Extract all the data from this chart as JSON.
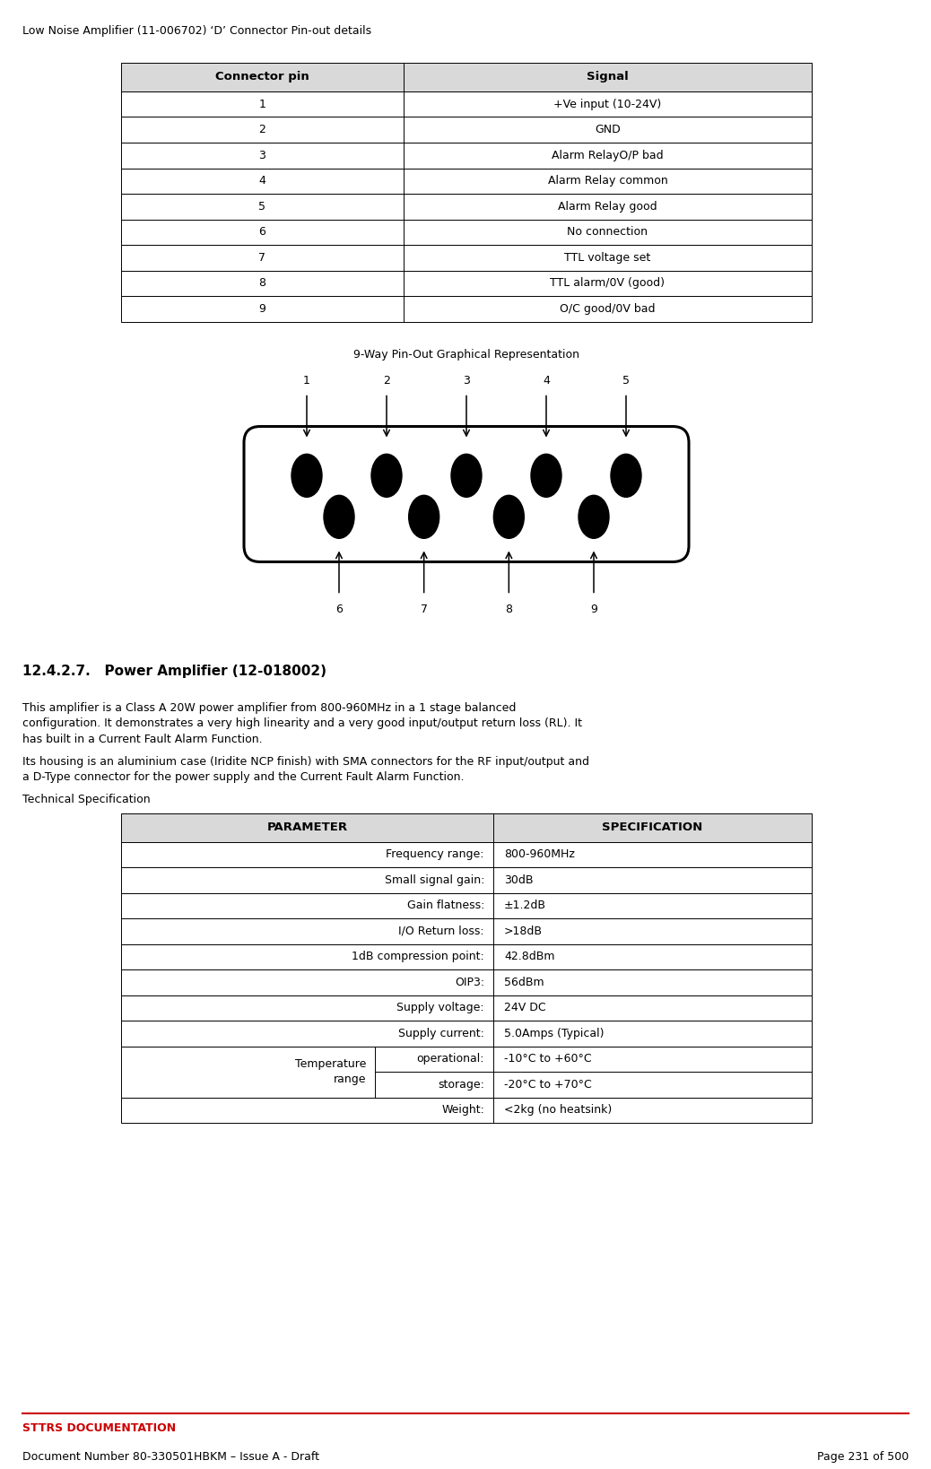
{
  "page_title": "Low Noise Amplifier (11-006702) ‘D’ Connector Pin-out details",
  "table1_headers": [
    "Connector pin",
    "Signal"
  ],
  "table1_rows": [
    [
      "1",
      "+Ve input (10-24V)"
    ],
    [
      "2",
      "GND"
    ],
    [
      "3",
      "Alarm RelayO/P bad"
    ],
    [
      "4",
      "Alarm Relay common"
    ],
    [
      "5",
      "Alarm Relay good"
    ],
    [
      "6",
      "No connection"
    ],
    [
      "7",
      "TTL voltage set"
    ],
    [
      "8",
      "TTL alarm/0V (good)"
    ],
    [
      "9",
      "O/C good/0V bad"
    ]
  ],
  "diagram_title": "9-Way Pin-Out Graphical Representation",
  "top_pins": [
    "1",
    "2",
    "3",
    "4",
    "5"
  ],
  "bottom_pins": [
    "6",
    "7",
    "8",
    "9"
  ],
  "section_heading": "12.4.2.7.   Power Amplifier (12-018002)",
  "body_text1": "This amplifier is a Class A 20W power amplifier from 800-960MHz in a 1 stage balanced\nconfiguration. It demonstrates a very high linearity and a very good input/output return loss (RL). It\nhas built in a Current Fault Alarm Function.",
  "body_text2": "Its housing is an aluminium case (Iridite NCP finish) with SMA connectors for the RF input/output and\na D-Type connector for the power supply and the Current Fault Alarm Function.",
  "tech_spec_label": "Technical Specification",
  "table2_headers": [
    "PARAMETER",
    "SPECIFICATION"
  ],
  "regular_rows": [
    [
      "Frequency range:",
      "800-960MHz"
    ],
    [
      "Small signal gain:",
      "30dB"
    ],
    [
      "Gain flatness:",
      "±1.2dB"
    ],
    [
      "I/O Return loss:",
      ">18dB"
    ],
    [
      "1dB compression point:",
      "42.8dBm"
    ],
    [
      "OIP3:",
      "56dBm"
    ],
    [
      "Supply voltage:",
      "24V DC"
    ],
    [
      "Supply current:",
      "5.0Amps (Typical)"
    ]
  ],
  "temp_rows": [
    [
      "operational:",
      "-10°C to +60°C"
    ],
    [
      "storage:",
      "-20°C to +70°C"
    ]
  ],
  "weight_row": [
    "Weight:",
    "<2kg (no heatsink)"
  ],
  "footer_line_color": "#cc0000",
  "footer_title": "STTRS DOCUMENTATION",
  "footer_doc": "Document Number 80-330501HBKM – Issue A - Draft",
  "footer_page": "Page 231 of 500",
  "bg_color": "#ffffff",
  "text_color": "#000000",
  "header_bg": "#d9d9d9",
  "fig_width": 10.38,
  "fig_height": 16.38,
  "dpi": 100
}
